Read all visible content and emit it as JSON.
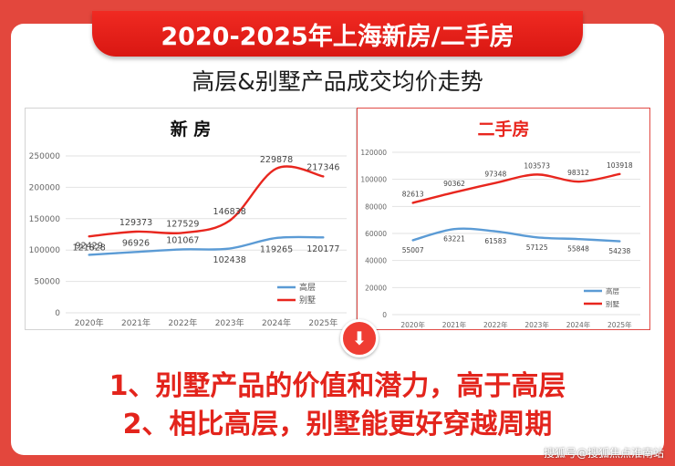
{
  "header": {
    "banner_title": "2020-2025年上海新房/二手房",
    "subtitle": "高层&别墅产品成交均价走势"
  },
  "conclusions": [
    "1、别墅产品的价值和潜力，高于高层",
    "2、相比高层，别墅能更好穿越周期"
  ],
  "watermark": "搜狐号@搜狐焦点淮南站",
  "colors": {
    "accent": "#e3473d",
    "gaoceng": "#5b9bd5",
    "bieshu": "#e8261e"
  },
  "chart_data": [
    {
      "type": "line",
      "title": "新 房",
      "categories": [
        "2020年",
        "2021年",
        "2022年",
        "2023年",
        "2024年",
        "2025年"
      ],
      "ylim": [
        0,
        250000
      ],
      "yticks": [
        "0",
        "50000",
        "100000",
        "150000",
        "200000",
        "250000"
      ],
      "series": [
        {
          "name": "高层",
          "values": [
            92429,
            96926,
            101067,
            102438,
            119265,
            120177
          ],
          "labels": [
            "92429",
            "96926",
            "101067",
            "102438",
            "119265",
            "120177"
          ]
        },
        {
          "name": "别墅",
          "values": [
            121828,
            129373,
            127529,
            146838,
            229878,
            217346
          ],
          "labels": [
            "121828",
            "129373",
            "127529",
            "146838",
            "229878",
            "217346"
          ]
        }
      ],
      "legend": "bottom-right",
      "grid": true
    },
    {
      "type": "line",
      "title": "二手房",
      "categories": [
        "2020年",
        "2021年",
        "2022年",
        "2023年",
        "2024年",
        "2025年"
      ],
      "ylim": [
        0,
        120000
      ],
      "yticks": [
        "0",
        "20000",
        "40000",
        "60000",
        "80000",
        "100000",
        "120000"
      ],
      "series": [
        {
          "name": "高层",
          "values": [
            55007,
            63221,
            61583,
            57125,
            55848,
            54238
          ],
          "labels": [
            "55007",
            "63221",
            "61583",
            "57125",
            "55848",
            "54238"
          ]
        },
        {
          "name": "别墅",
          "values": [
            82613,
            90362,
            97348,
            103573,
            98312,
            103918
          ],
          "labels": [
            "82613",
            "90362",
            "97348",
            "103573",
            "98312",
            "103918"
          ]
        }
      ],
      "legend": "bottom-right",
      "grid": true
    }
  ]
}
